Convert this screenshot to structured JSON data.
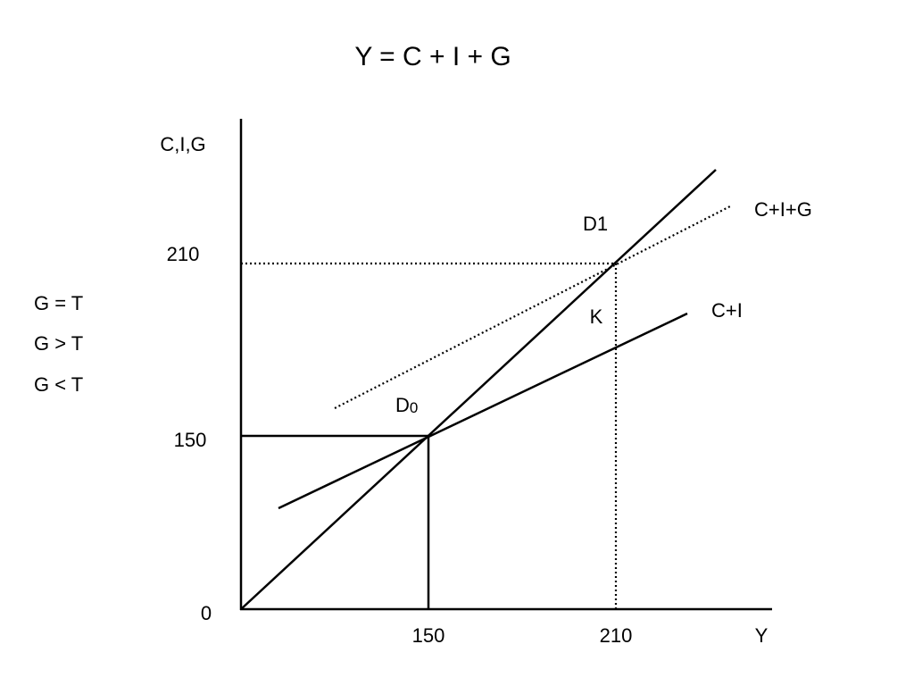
{
  "title": "Y = C + I + G",
  "axes": {
    "y_label": "C,I,G",
    "x_label": "Y",
    "y_ticks": [
      "0",
      "150",
      "210"
    ],
    "x_ticks": [
      "150",
      "210"
    ]
  },
  "conditions": [
    "G = T",
    "G > T",
    "G < T"
  ],
  "points": {
    "d0": {
      "main": "D",
      "sub": "0"
    },
    "d1": "D1",
    "k": "K"
  },
  "lines": {
    "cig": "C+I+G",
    "ci": "C+I"
  }
}
